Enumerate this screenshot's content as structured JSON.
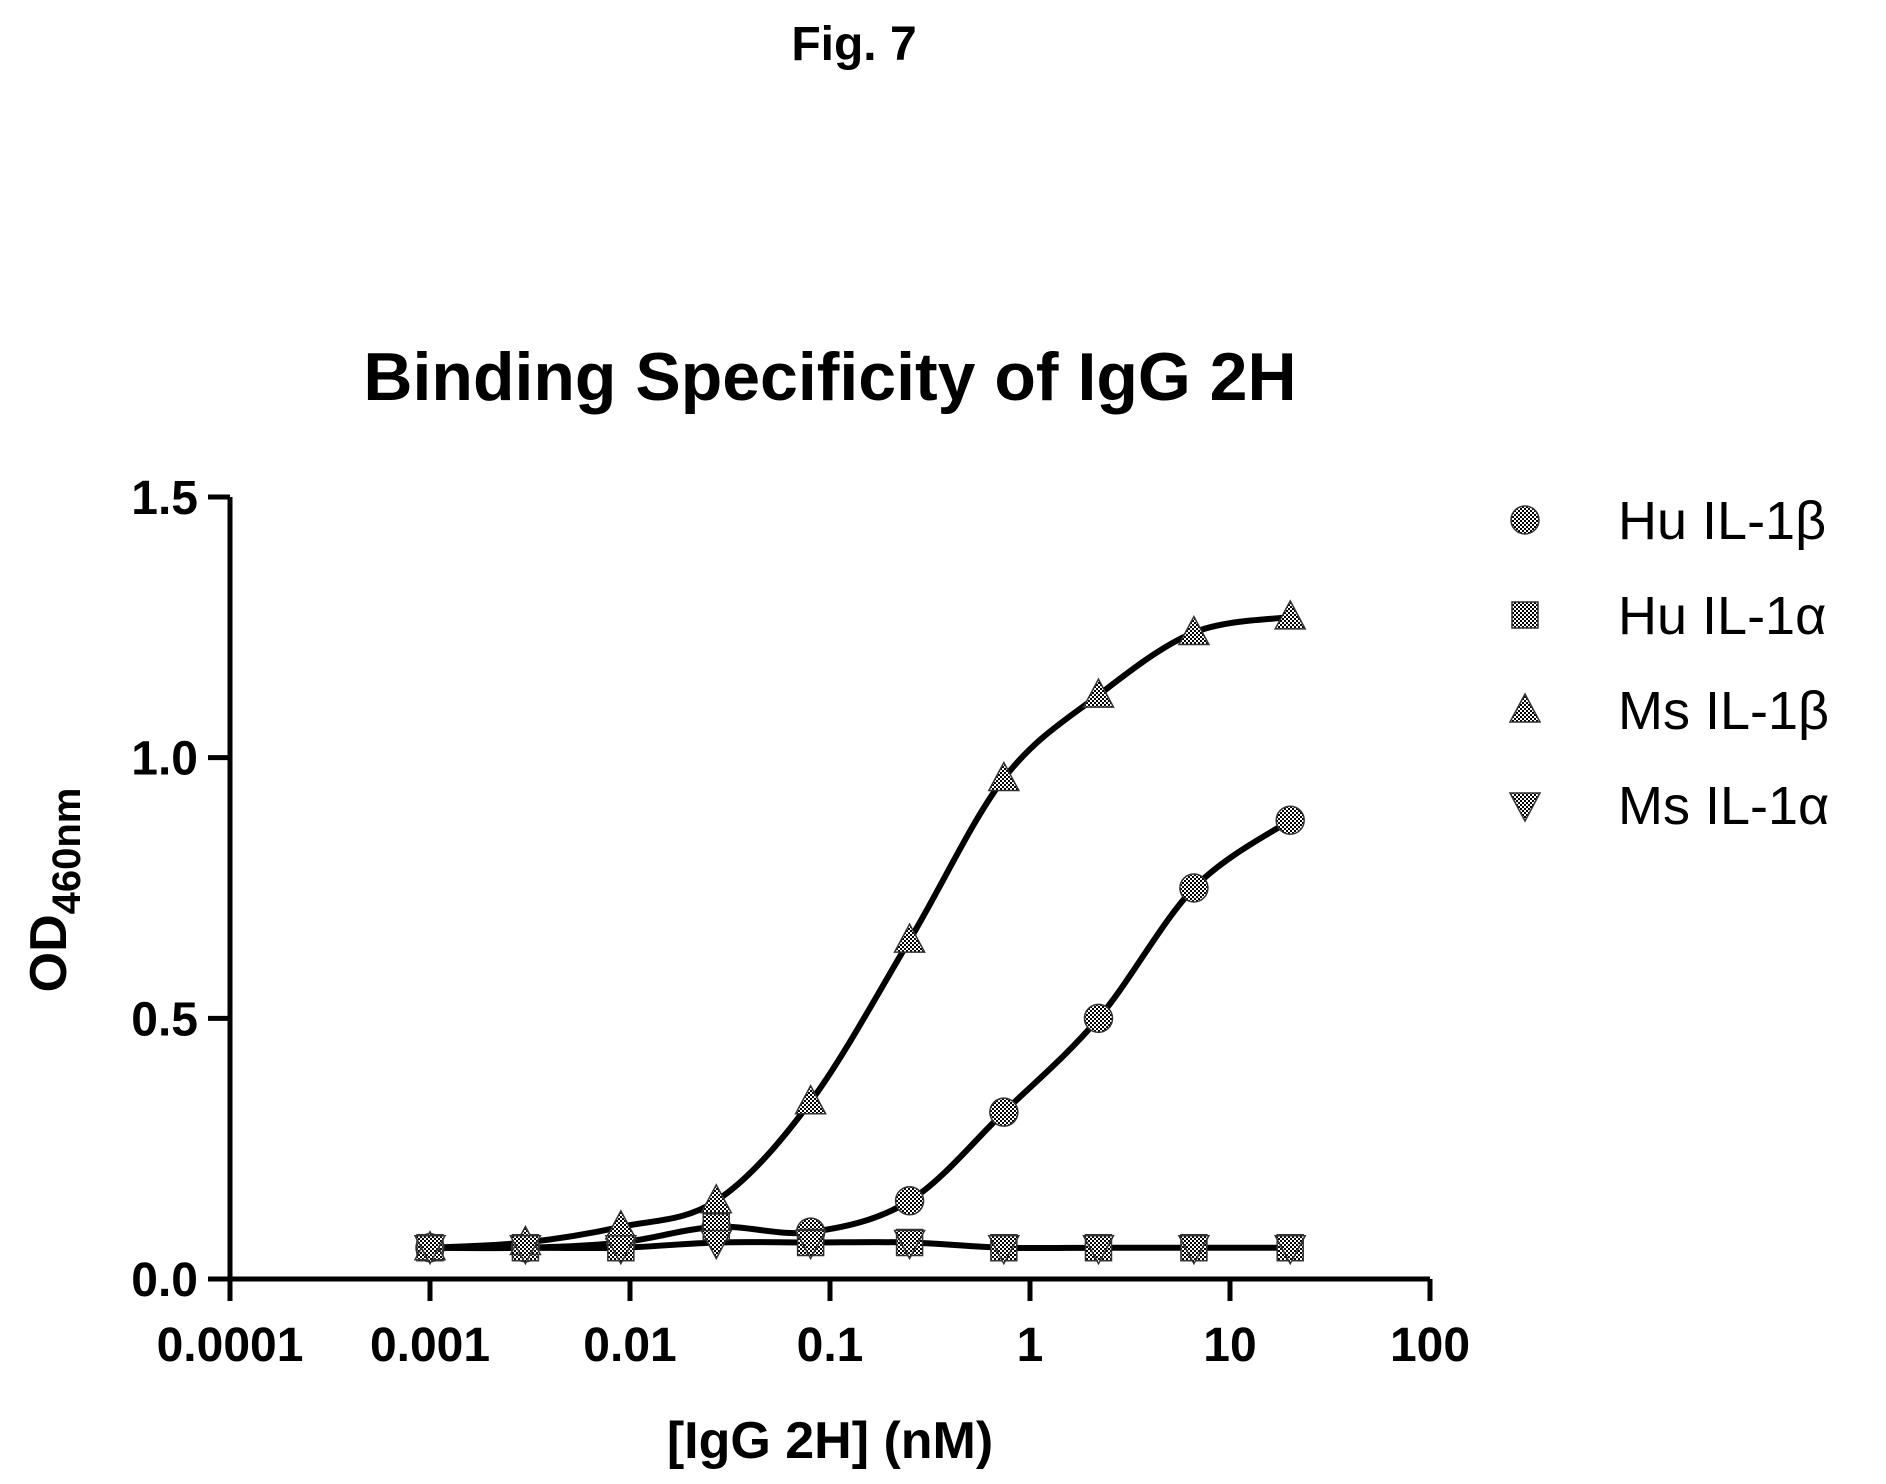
{
  "figure_label": "Fig. 7",
  "chart_data": {
    "type": "scatter",
    "title": "Binding Specificity of IgG 2H",
    "xlabel": "[IgG 2H] (nM)",
    "ylabel": {
      "main": "OD",
      "subscript": "460nm"
    },
    "xscale": "log",
    "xlim": [
      0.0001,
      100
    ],
    "ylim": [
      0.0,
      1.5
    ],
    "xticks": [
      0.0001,
      0.001,
      0.01,
      0.1,
      1,
      10,
      100
    ],
    "xtick_labels": [
      "0.0001",
      "0.001",
      "0.01",
      "0.1",
      "1",
      "10",
      "100"
    ],
    "yticks": [
      0.0,
      0.5,
      1.0,
      1.5
    ],
    "ytick_labels": [
      "0.0",
      "0.5",
      "1.0",
      "1.5"
    ],
    "grid": false,
    "legend_position": "right",
    "x": [
      0.001,
      0.003,
      0.009,
      0.027,
      0.08,
      0.25,
      0.74,
      2.2,
      6.6,
      20
    ],
    "series": [
      {
        "name": "Hu IL-1β",
        "marker": "circle",
        "fit": true,
        "values": [
          0.06,
          0.06,
          0.07,
          0.1,
          0.09,
          0.15,
          0.32,
          0.5,
          0.75,
          0.88
        ]
      },
      {
        "name": "Hu IL-1α",
        "marker": "square",
        "fit": false,
        "values": [
          0.06,
          0.06,
          0.06,
          0.1,
          0.07,
          0.07,
          0.06,
          0.06,
          0.06,
          0.06
        ]
      },
      {
        "name": "Ms IL-1β",
        "marker": "triangle-up",
        "fit": true,
        "values": [
          0.06,
          0.07,
          0.1,
          0.15,
          0.34,
          0.65,
          0.96,
          1.12,
          1.24,
          1.27
        ]
      },
      {
        "name": "Ms IL-1α",
        "marker": "triangle-down",
        "fit": true,
        "values": [
          0.06,
          0.06,
          0.06,
          0.07,
          0.07,
          0.07,
          0.06,
          0.06,
          0.06,
          0.06
        ]
      }
    ]
  }
}
